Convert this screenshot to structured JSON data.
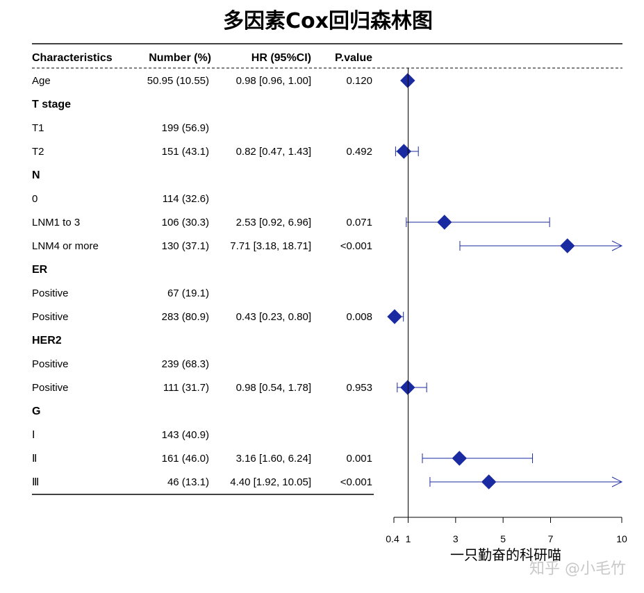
{
  "chart_data": {
    "type": "forest",
    "title": "多因素Cox回归森林图",
    "columns": [
      "Characteristics",
      "Number (%)",
      "HR (95%CI)",
      "P.value"
    ],
    "xlabel": "一只勤奋的科研喵",
    "x_ticks": [
      0.4,
      1,
      3,
      5,
      7,
      10
    ],
    "x_tick_labels": [
      "0.4",
      "1",
      "3",
      "5",
      "7",
      "10"
    ],
    "xlim": [
      0.4,
      10
    ],
    "reference_line": 1,
    "colors": {
      "marker": "#1a2aa0",
      "ci": "#1a2aa0"
    },
    "rows": [
      {
        "label": "Age",
        "group": false,
        "number": "50.95 (10.55)",
        "hr_text": "0.98 [0.96, 1.00]",
        "p": "0.120",
        "hr": 0.98,
        "lo": 0.96,
        "hi": 1.0
      },
      {
        "label": "T stage",
        "group": true
      },
      {
        "label": "T1",
        "group": false,
        "number": "199 (56.9)"
      },
      {
        "label": "T2",
        "group": false,
        "number": "151 (43.1)",
        "hr_text": "0.82 [0.47, 1.43]",
        "p": "0.492",
        "hr": 0.82,
        "lo": 0.47,
        "hi": 1.43
      },
      {
        "label": "N",
        "group": true
      },
      {
        "label": "0",
        "group": false,
        "number": "114 (32.6)"
      },
      {
        "label": "LNM1 to 3",
        "group": false,
        "number": "106 (30.3)",
        "hr_text": "2.53 [0.92, 6.96]",
        "p": "0.071",
        "hr": 2.53,
        "lo": 0.92,
        "hi": 6.96
      },
      {
        "label": "LNM4 or more",
        "group": false,
        "number": "130 (37.1)",
        "hr_text": "7.71 [3.18, 18.71]",
        "p": "<0.001",
        "hr": 7.71,
        "lo": 3.18,
        "hi": 18.71
      },
      {
        "label": "ER",
        "group": true
      },
      {
        "label": "Positive",
        "group": false,
        "number": "67 (19.1)"
      },
      {
        "label": "Positive",
        "group": false,
        "number": "283 (80.9)",
        "hr_text": "0.43 [0.23, 0.80]",
        "p": "0.008",
        "hr": 0.43,
        "lo": 0.23,
        "hi": 0.8
      },
      {
        "label": "HER2",
        "group": true
      },
      {
        "label": "Positive",
        "group": false,
        "number": "239 (68.3)"
      },
      {
        "label": "Positive",
        "group": false,
        "number": "111 (31.7)",
        "hr_text": "0.98 [0.54, 1.78]",
        "p": "0.953",
        "hr": 0.98,
        "lo": 0.54,
        "hi": 1.78
      },
      {
        "label": "G",
        "group": true
      },
      {
        "label": "Ⅰ",
        "group": false,
        "number": "143 (40.9)"
      },
      {
        "label": "Ⅱ",
        "group": false,
        "number": "161 (46.0)",
        "hr_text": "3.16 [1.60, 6.24]",
        "p": "0.001",
        "hr": 3.16,
        "lo": 1.6,
        "hi": 6.24
      },
      {
        "label": "Ⅲ",
        "group": false,
        "number": "46 (13.1)",
        "hr_text": "4.40 [1.92, 10.05]",
        "p": "<0.001",
        "hr": 4.4,
        "lo": 1.92,
        "hi": 10.05
      }
    ]
  },
  "watermark": "知乎 @小毛竹"
}
